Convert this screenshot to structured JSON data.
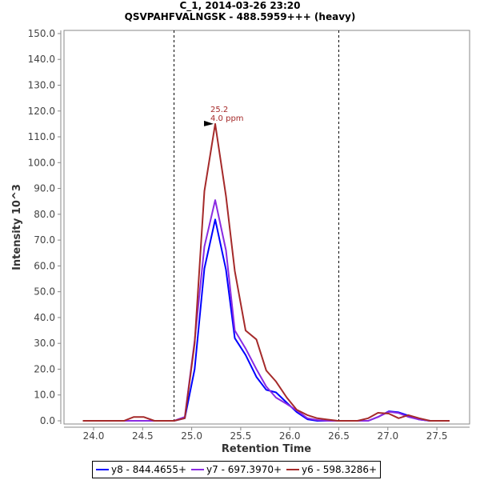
{
  "chart_data": {
    "type": "line",
    "title": "C_1, 2014-03-26 23:20",
    "subtitle": "QSVPAHFVALNGSK - 488.5959+++ (heavy)",
    "xlabel": "Retention Time",
    "ylabel": "Intensity 10^3",
    "xlim": [
      23.8,
      27.85
    ],
    "ylim": [
      0,
      150
    ],
    "xticks": [
      "24.0",
      "24.5",
      "25.0",
      "25.5",
      "26.0",
      "26.5",
      "27.0",
      "27.5"
    ],
    "yticks": [
      "0.0",
      "10.0",
      "20.0",
      "30.0",
      "40.0",
      "50.0",
      "60.0",
      "70.0",
      "80.0",
      "90.0",
      "100.0",
      "110.0",
      "120.0",
      "130.0",
      "140.0",
      "150.0"
    ],
    "integration_bounds": [
      24.82,
      26.5
    ],
    "peak_annotation": {
      "rt": 25.24,
      "value": 115,
      "label_rt": "25.2",
      "label_ppm": "4.0 ppm",
      "color": "#a52a2a"
    },
    "x": [
      23.89,
      23.99,
      24.1,
      24.2,
      24.31,
      24.41,
      24.51,
      24.62,
      24.72,
      24.82,
      24.93,
      25.03,
      25.13,
      25.24,
      25.35,
      25.44,
      25.55,
      25.66,
      25.76,
      25.86,
      25.97,
      26.07,
      26.18,
      26.28,
      26.38,
      26.49,
      26.59,
      26.69,
      26.8,
      26.9,
      27.01,
      27.11,
      27.21,
      27.32,
      27.43,
      27.52,
      27.63
    ],
    "series": [
      {
        "name": "y8 - 844.4655+",
        "color": "#0000ff",
        "values": [
          0,
          0,
          0,
          0,
          0,
          0,
          0,
          0,
          0,
          0,
          1,
          20,
          59,
          78,
          58.5,
          32,
          25.5,
          17,
          12,
          11,
          7,
          3.4,
          0.6,
          0,
          0,
          0,
          0,
          0,
          0,
          1.5,
          3.7,
          3.3,
          2,
          0.5,
          0,
          0,
          0
        ]
      },
      {
        "name": "y7 - 697.3970+",
        "color": "#8a2be2",
        "values": [
          0,
          0,
          0,
          0,
          0,
          0,
          0,
          0,
          0,
          0,
          1.5,
          31,
          67.5,
          85.5,
          66,
          35,
          28,
          20,
          13.3,
          9,
          6.5,
          4,
          1,
          0.3,
          0,
          0,
          0,
          0,
          0,
          1.5,
          3.5,
          3,
          1.5,
          0.5,
          0,
          0,
          0
        ]
      },
      {
        "name": "y6 - 598.3286+",
        "color": "#a52a2a",
        "values": [
          0,
          0,
          0,
          0,
          0,
          1.5,
          1.5,
          0,
          0,
          0,
          1,
          30,
          89,
          115,
          87,
          58,
          35,
          31.5,
          19.5,
          15.2,
          9,
          4.3,
          2.2,
          1,
          0.5,
          0,
          0,
          0,
          1,
          3.1,
          2.8,
          1,
          2.2,
          1,
          0,
          0,
          0
        ]
      }
    ],
    "legend_placement": "bottom",
    "grid": false
  }
}
